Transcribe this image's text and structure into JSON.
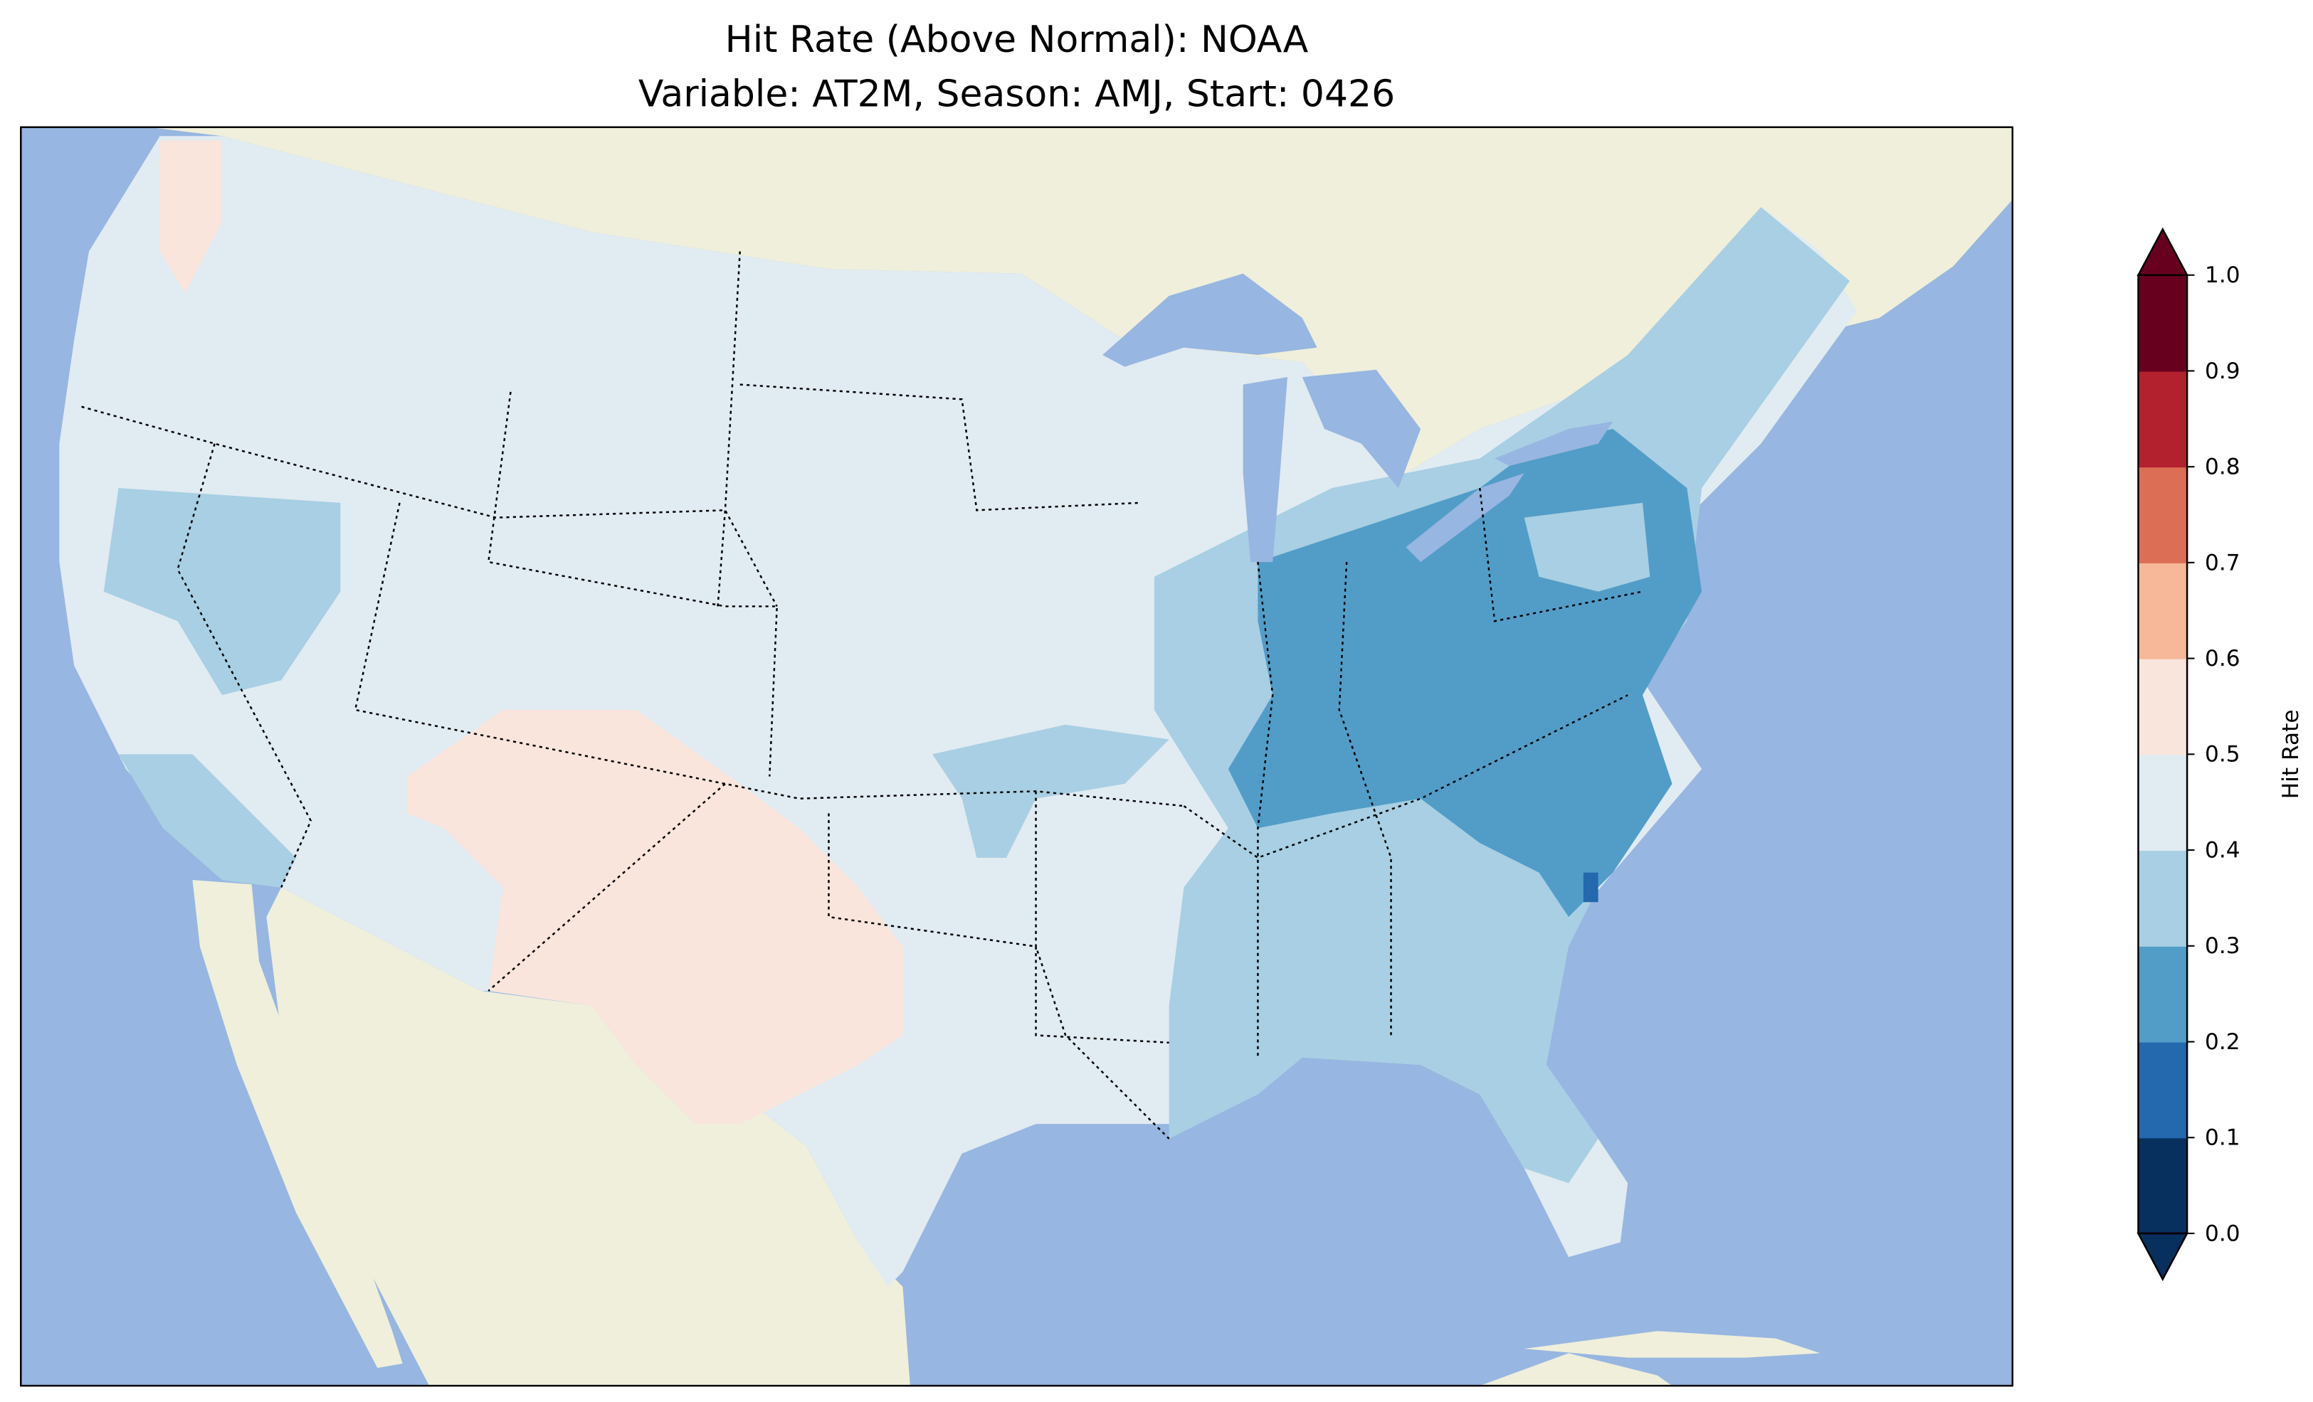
{
  "chart_data": {
    "type": "heatmap",
    "title_line1": "Hit Rate (Above Normal): NOAA",
    "title_line2": "Variable: AT2M, Season: AMJ, Start: 0426",
    "region": "Contiguous United States",
    "colorbar": {
      "label": "Hit Rate",
      "range": [
        0.0,
        1.0
      ],
      "extend": "both",
      "ticks": [
        "0.0",
        "0.1",
        "0.2",
        "0.3",
        "0.4",
        "0.5",
        "0.6",
        "0.7",
        "0.8",
        "0.9",
        "1.0"
      ],
      "bin_colors": [
        "#08305e",
        "#2468ad",
        "#529dc8",
        "#a8cfe3",
        "#e1ebf2",
        "#f9e5dc",
        "#f6b898",
        "#dc6e56",
        "#b2212d",
        "#67001f"
      ]
    },
    "regions_summary": [
      {
        "area": "Most of West, Plains, Midwest",
        "hit_rate_bin": [
          0.4,
          0.5
        ]
      },
      {
        "area": "Southwest (AZ, NM, W Texas) and NW Washington",
        "hit_rate_bin": [
          0.5,
          0.6
        ]
      },
      {
        "area": "Southeast, New England, Nevada/N California, S California",
        "hit_rate_bin": [
          0.3,
          0.4
        ]
      },
      {
        "area": "Ohio Valley, Mid-Atlantic, Carolinas",
        "hit_rate_bin": [
          0.2,
          0.3
        ]
      },
      {
        "area": "South Carolina coast spot",
        "hit_rate_bin": [
          0.1,
          0.2
        ]
      }
    ],
    "colors": {
      "ocean": "#97b6e1",
      "land": "#efefdb"
    }
  }
}
